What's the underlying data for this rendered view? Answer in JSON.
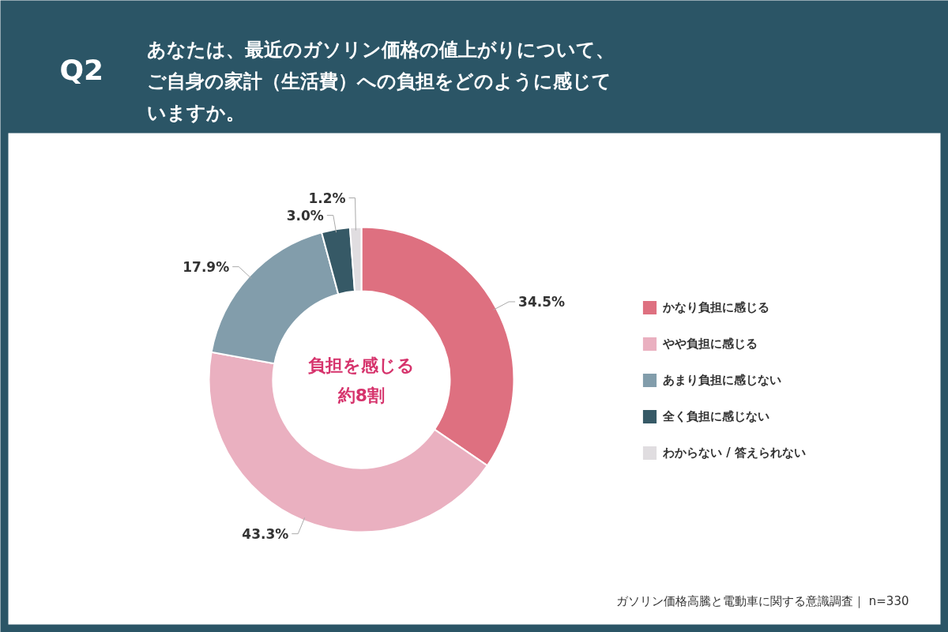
{
  "chart_data": {
    "type": "donut",
    "title": "あなたは、最近のガソリン価格の値上がりについて、ご自身の家計（生活費）への負担をどのように感じていますか。",
    "categories": [
      "かなり負担に感じる",
      "やや負担に感じる",
      "あまり負担に感じない",
      "全く負担に感じない",
      "わからない / 答えられない"
    ],
    "values": [
      34.5,
      43.3,
      17.9,
      3.0,
      1.2
    ],
    "value_labels": [
      "34.5%",
      "43.3%",
      "17.9%",
      "3.0%",
      "1.2%"
    ],
    "colors": [
      "#de7080",
      "#eab0c0",
      "#829dab",
      "#365966",
      "#e0dde0"
    ],
    "legend": "right",
    "annotations": [
      "Q2",
      "負担を感じる",
      "約8割",
      "ガソリン価格高騰と電動車に関する意識調査｜ n=330"
    ]
  }
}
